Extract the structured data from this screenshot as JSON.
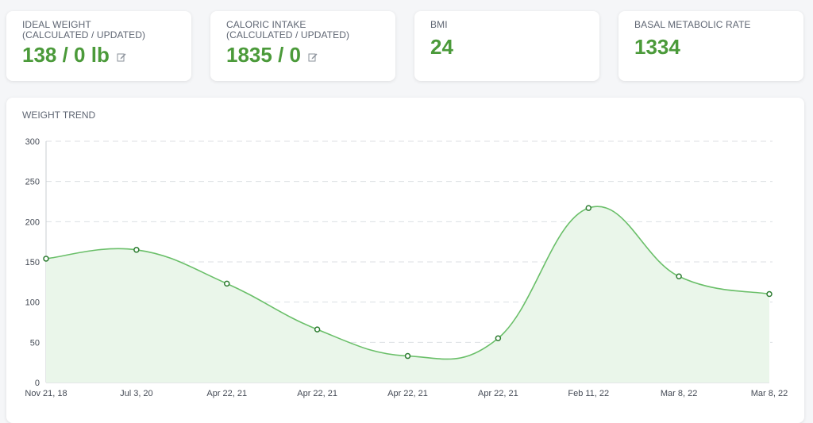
{
  "stats": [
    {
      "label_line1": "IDEAL WEIGHT",
      "label_line2": "(CALCULATED / UPDATED)",
      "value": "138 / 0 lb"
    },
    {
      "label_line1": "CALORIC INTAKE",
      "label_line2": "(CALCULATED / UPDATED)",
      "value": "1835 / 0"
    },
    {
      "label_line1": "BMI",
      "value": "24"
    },
    {
      "label_line1": "BASAL METABOLIC RATE",
      "value": "1334"
    }
  ],
  "colors": {
    "accent": "#4b9a3a",
    "line": "#6abf69",
    "fill": "#eaf6ea",
    "point_stroke": "#2e7d32"
  },
  "chart_data": {
    "type": "area",
    "title": "WEIGHT TREND",
    "categories": [
      "Nov 21, 18",
      "Jul 3, 20",
      "Apr 22, 21",
      "Apr 22, 21",
      "Apr 22, 21",
      "Apr 22, 21",
      "Feb 11, 22",
      "Mar 8, 22",
      "Mar 8, 22"
    ],
    "values": [
      154,
      165,
      123,
      66,
      33,
      55,
      217,
      132,
      110
    ],
    "ylim": [
      0,
      300
    ],
    "yticks": [
      0,
      50,
      100,
      150,
      200,
      250,
      300
    ],
    "grid": true,
    "legend": "none"
  }
}
